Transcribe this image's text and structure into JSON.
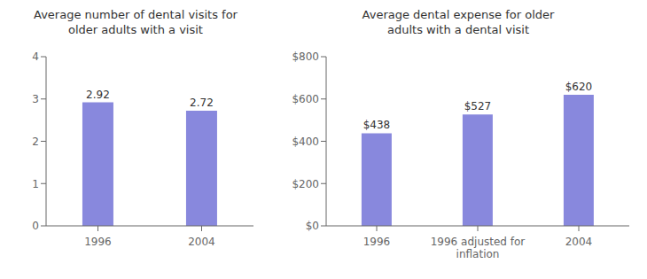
{
  "chart_data": [
    {
      "type": "bar",
      "title": "Average number of dental visits for\nolder adults with a visit",
      "categories": [
        "1996",
        "2004"
      ],
      "values": [
        2.92,
        2.72
      ],
      "data_labels": true,
      "color": "#8888dd",
      "ylim": [
        0,
        4
      ],
      "yticks": [
        0,
        1,
        2,
        3,
        4
      ],
      "grid": false
    },
    {
      "type": "bar",
      "title": "Average dental expense for older\nadults with a dental visit",
      "categories": [
        "1996",
        "1996 adjusted for\ninflation",
        "2004"
      ],
      "values": [
        438,
        527,
        620
      ],
      "value_labels": [
        "$438",
        "$527",
        "$620"
      ],
      "data_labels": true,
      "color": "#8888dd",
      "ylim": [
        0,
        800
      ],
      "yticks": [
        {
          "value": 0,
          "label": "$0"
        },
        {
          "value": 200,
          "label": "$200"
        },
        {
          "value": 400,
          "label": "$400"
        },
        {
          "value": 600,
          "label": "$600"
        },
        {
          "value": 800,
          "label": "$800"
        }
      ],
      "grid": false
    }
  ]
}
